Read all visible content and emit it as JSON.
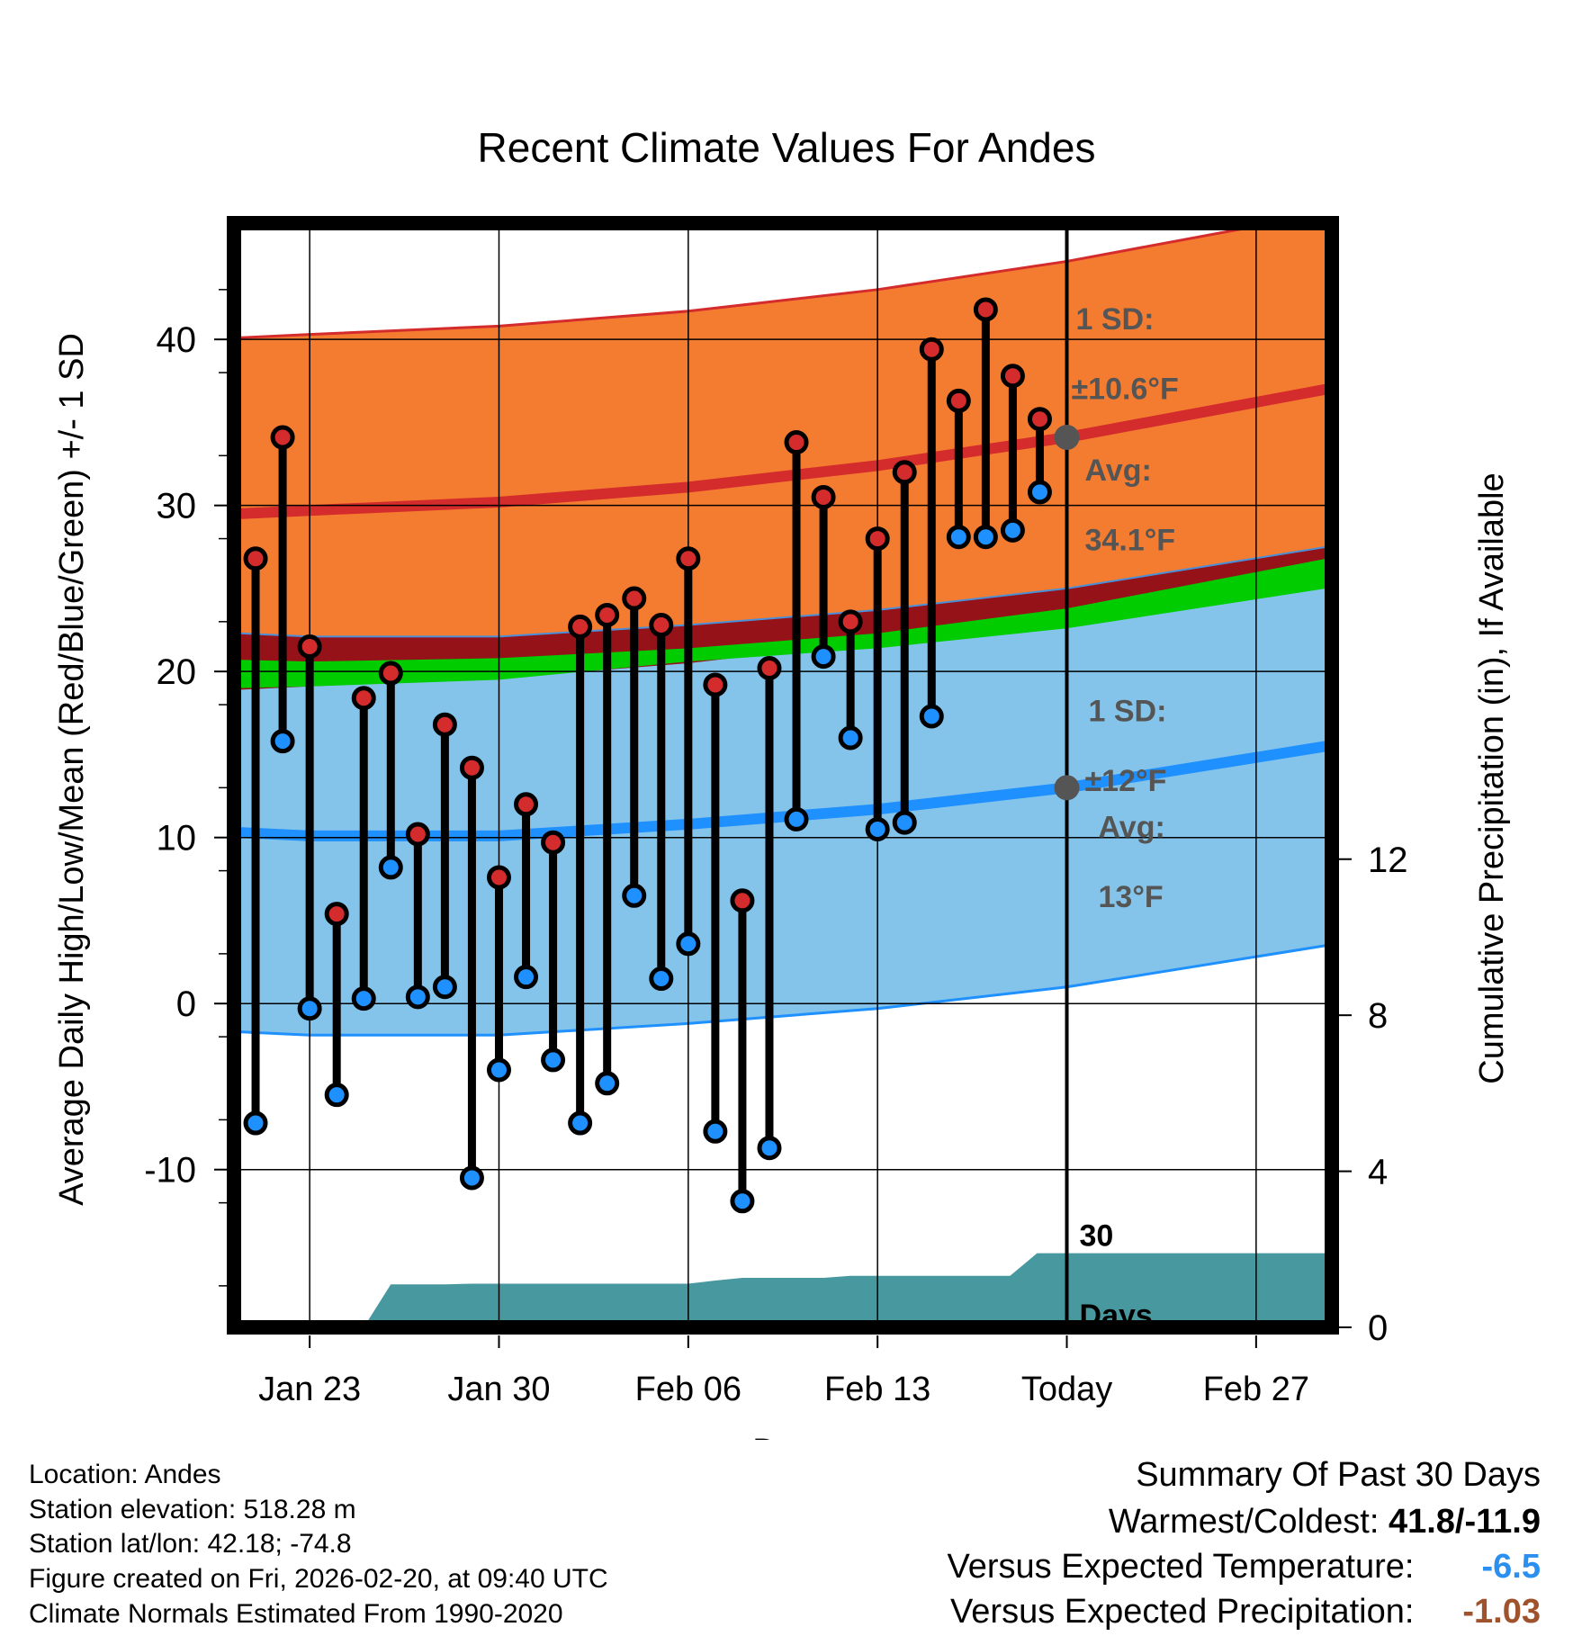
{
  "chart_data": {
    "type": "line",
    "title": "Recent Climate Values For Andes",
    "xlabel": "Day",
    "ylabel": "Average Daily High/Low/Mean (Red/Blue/Green) +/- 1 SD",
    "y2label": "Cumulative Precipitation (in), If Available",
    "x_range": [
      -2.8,
      37.8
    ],
    "ylim": [
      -19.5,
      47
    ],
    "y2lim": [
      0,
      30.0
    ],
    "x_ticks": [
      {
        "x": 0,
        "label": "Jan 23"
      },
      {
        "x": 7,
        "label": "Jan 30"
      },
      {
        "x": 14,
        "label": "Feb 06"
      },
      {
        "x": 21,
        "label": "Feb 13"
      },
      {
        "x": 28,
        "label": "Today"
      },
      {
        "x": 35,
        "label": "Feb 27"
      }
    ],
    "y_ticks": [
      -10,
      0,
      10,
      20,
      30,
      40
    ],
    "y2_ticks": [
      0,
      4,
      8,
      12
    ],
    "today_x": 28,
    "normals": {
      "x": [
        -2.6,
        0,
        7,
        14,
        21,
        28,
        37.6
      ],
      "high_avg": [
        29.5,
        29.7,
        30.2,
        31.1,
        32.4,
        34.1,
        37.0
      ],
      "high_sd": 10.6,
      "low_avg": [
        10.3,
        10.1,
        10.1,
        10.8,
        11.7,
        13.0,
        15.5
      ],
      "low_sd": 12,
      "mean_upper": [
        20.7,
        20.6,
        20.8,
        21.4,
        22.3,
        23.8,
        26.8
      ],
      "mean_lower": [
        19.0,
        19.1,
        19.5,
        20.6,
        21.4,
        22.6,
        25.0
      ]
    },
    "series": [
      {
        "name": "Daily High",
        "color": "#d42c2c",
        "values": [
          26.8,
          34.1,
          21.5,
          5.4,
          18.4,
          19.9,
          10.2,
          16.8,
          14.2,
          7.6,
          12.0,
          9.7,
          22.7,
          23.4,
          24.4,
          22.8,
          26.8,
          19.2,
          6.2,
          20.2,
          33.8,
          30.5,
          23.0,
          28.0,
          32.0,
          39.4,
          36.3,
          41.8,
          37.8,
          35.2
        ]
      },
      {
        "name": "Daily Low",
        "color": "#1e90ff",
        "values": [
          -7.2,
          15.8,
          -0.3,
          -5.5,
          0.3,
          8.2,
          0.4,
          1.0,
          -10.5,
          -4.0,
          1.6,
          -3.4,
          -7.2,
          -4.8,
          6.5,
          1.5,
          3.6,
          -7.7,
          -11.9,
          -8.7,
          11.1,
          20.9,
          16.0,
          10.5,
          10.9,
          17.3,
          28.1,
          28.1,
          28.5,
          30.8
        ]
      }
    ],
    "days_x_start": -2,
    "precip_cumulative": {
      "x": [
        -2.2,
        1.0,
        2.0,
        3.0,
        4.0,
        5.0,
        6.0,
        7.0,
        8.0,
        9.0,
        10.0,
        11.0,
        12.0,
        13.0,
        14.0,
        15.0,
        16.0,
        17.0,
        18.0,
        19.0,
        20.0,
        21.0,
        22.0,
        23.0,
        24.0,
        25.0,
        25.9,
        26.9,
        28.0,
        37.6
      ],
      "values": [
        0,
        0,
        0.0,
        1.1,
        1.1,
        1.1,
        1.12,
        1.12,
        1.12,
        1.12,
        1.12,
        1.12,
        1.12,
        1.12,
        1.12,
        1.2,
        1.27,
        1.27,
        1.27,
        1.27,
        1.32,
        1.32,
        1.32,
        1.32,
        1.32,
        1.32,
        1.32,
        1.9,
        1.9,
        1.9
      ]
    },
    "annotations": {
      "high_sd_label": "1 SD:",
      "high_sd_value": "±10.6°F",
      "high_avg_label": "Avg:",
      "high_avg_value": "34.1°F",
      "low_sd_label": "1 SD:",
      "low_sd_value": "±12°F",
      "low_avg_label": "Avg:",
      "low_avg_value": "13°F",
      "days_label_1": "30",
      "days_label_2": "Days"
    }
  },
  "info": {
    "location": "Location: Andes",
    "elevation": "Station elevation: 518.28 m",
    "latlon": "Station lat/lon: 42.18; -74.8",
    "created": "Figure created on Fri, 2026-02-20, at 09:40 UTC",
    "normals": "Climate Normals Estimated From 1990-2020"
  },
  "summary": {
    "title": "Summary Of Past 30 Days",
    "warm_cold_label": "Warmest/Coldest:",
    "warm_cold_value": "41.8/-11.9",
    "temp_label": "Versus Expected Temperature:",
    "temp_value": "-6.5",
    "temp_color": "#2b8ff0",
    "precip_label": "Versus Expected Precipitation:",
    "precip_value": "-1.03",
    "precip_color": "#a0522d"
  }
}
